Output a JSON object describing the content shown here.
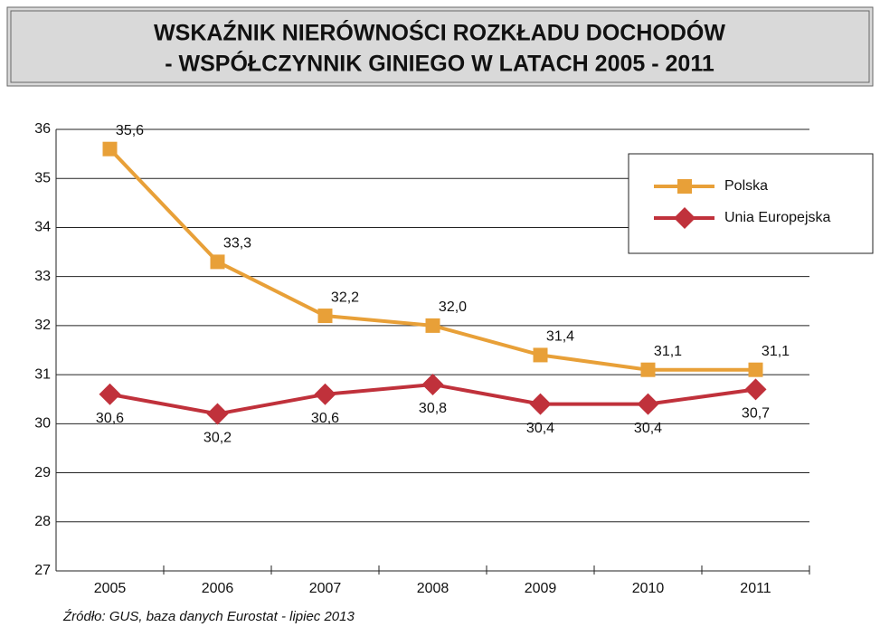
{
  "chart_data": {
    "type": "line",
    "title": [
      "WSKAŹNIK NIERÓWNOŚCI ROZKŁADU DOCHODÓW",
      "- WSPÓŁCZYNNIK GINIEGO W LATACH 2005 - 2011"
    ],
    "source": "Źródło: GUS, baza danych Eurostat - lipiec 2013",
    "categories": [
      "2005",
      "2006",
      "2007",
      "2008",
      "2009",
      "2010",
      "2011"
    ],
    "series": [
      {
        "name": "Polska",
        "color": "#e8a038",
        "marker": "square",
        "values": [
          35.6,
          33.3,
          32.2,
          32.0,
          31.4,
          31.1,
          31.1
        ],
        "value_labels": [
          "35,6",
          "33,3",
          "32,2",
          "32,0",
          "31,4",
          "31,1",
          "31,1"
        ]
      },
      {
        "name": "Unia Europejska",
        "color": "#c0313b",
        "marker": "diamond",
        "values": [
          30.6,
          30.2,
          30.6,
          30.8,
          30.4,
          30.4,
          30.7
        ],
        "value_labels": [
          "30,6",
          "30,2",
          "30,6",
          "30,8",
          "30,4",
          "30,4",
          "30,7"
        ]
      }
    ],
    "ylim": [
      27,
      36
    ],
    "yticks": [
      27,
      28,
      29,
      30,
      31,
      32,
      33,
      34,
      35,
      36
    ],
    "grid": true,
    "legend": "upper right"
  }
}
